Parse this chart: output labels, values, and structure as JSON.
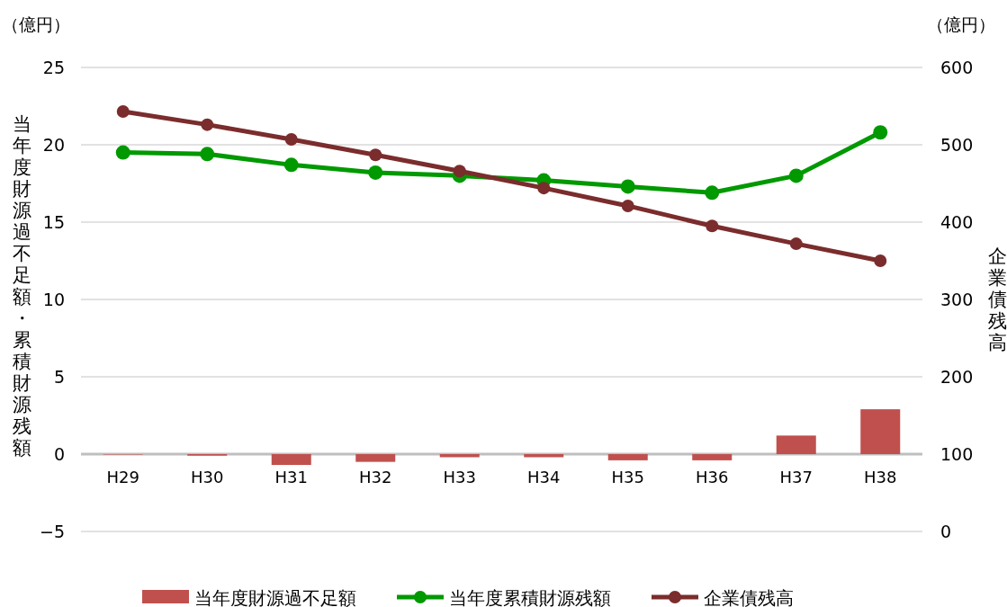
{
  "chart_data": {
    "type": "bar",
    "ylabel": "当年度財源過不足額・累積財源残額",
    "y2label": "企業債残高",
    "annotations": [
      "（億円）",
      "（億円）"
    ],
    "categories": [
      "H29",
      "H30",
      "H31",
      "H32",
      "H33",
      "H34",
      "H35",
      "H36",
      "H37",
      "H38"
    ],
    "series": [
      {
        "name": "当年度財源過不足額",
        "color": "#c0504d",
        "values": [
          0,
          -0.1,
          -0.7,
          -0.5,
          -0.2,
          -0.2,
          -0.4,
          -0.4,
          1.2,
          2.9
        ]
      },
      {
        "name": "当年度累積財源残額",
        "type": "line",
        "color": "#009900",
        "values": [
          19.5,
          19.4,
          18.7,
          18.2,
          18.0,
          17.7,
          17.3,
          16.9,
          18.0,
          20.8
        ]
      },
      {
        "name": "企業債残高",
        "type": "line",
        "axis": "y2",
        "color": "#7b2c2c",
        "values": [
          543,
          526,
          507,
          487,
          466,
          444,
          421,
          395,
          372,
          350
        ]
      }
    ],
    "ylim": [
      -5,
      25
    ],
    "yticks": [
      -5,
      0,
      5,
      10,
      15,
      20,
      25
    ],
    "y2lim": [
      0,
      600
    ],
    "y2ticks": [
      0,
      100,
      200,
      300,
      400,
      500,
      600
    ],
    "grid": "y",
    "legend": "bottom",
    "marker": "circle"
  }
}
